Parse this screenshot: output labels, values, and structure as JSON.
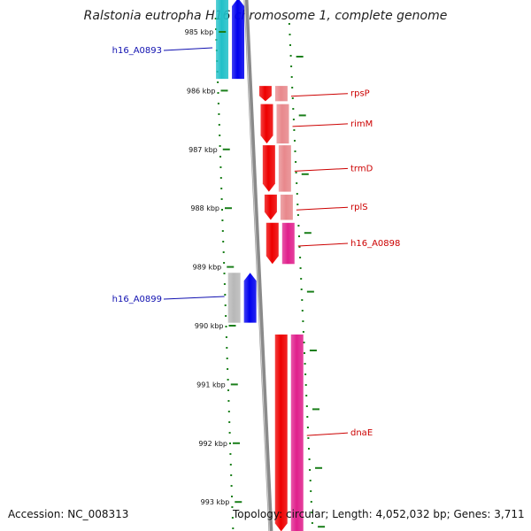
{
  "title": "Ralstonia eutropha H16 chromosome 1, complete genome",
  "footer": {
    "accession": "Accession: NC_008313",
    "topology": "Topology: circular; Length: 4,052,032 bp; Genes: 3,711"
  },
  "colors": {
    "backbone": "#8a8a8a",
    "tick": "#1a7f1a",
    "label_blue": "#1010b0",
    "label_red": "#cc0000",
    "gene_red": "#ee0000",
    "gene_pink": "#e8888c",
    "gene_magenta": "#e0208c",
    "gene_blue": "#0000ee",
    "gene_cyan": "#20c0c8",
    "gene_gray": "#b8b8b8"
  },
  "ticks": [
    {
      "label": "985 kbp",
      "kbp": 985
    },
    {
      "label": "986 kbp",
      "kbp": 986
    },
    {
      "label": "987 kbp",
      "kbp": 987
    },
    {
      "label": "988 kbp",
      "kbp": 988
    },
    {
      "label": "989 kbp",
      "kbp": 989
    },
    {
      "label": "990 kbp",
      "kbp": 990
    },
    {
      "label": "991 kbp",
      "kbp": 991
    },
    {
      "label": "992 kbp",
      "kbp": 992
    },
    {
      "label": "993 kbp",
      "kbp": 993
    }
  ],
  "genes": [
    {
      "name": "h16_A0893",
      "start": 984.2,
      "end": 985.8,
      "lane": "left",
      "color": "gene_blue",
      "side": "left",
      "shade": "gene_cyan",
      "labelled": true
    },
    {
      "name": "rpsP",
      "start": 985.92,
      "end": 986.18,
      "lane": "right",
      "color": "gene_red",
      "side": "right",
      "shade": "gene_pink",
      "labelled": true
    },
    {
      "name": "rimM",
      "start": 986.23,
      "end": 986.9,
      "lane": "right",
      "color": "gene_red",
      "side": "right",
      "shade": "gene_pink",
      "labelled": true
    },
    {
      "name": "trmD",
      "start": 986.93,
      "end": 987.72,
      "lane": "right",
      "color": "gene_red",
      "side": "right",
      "shade": "gene_pink",
      "labelled": true
    },
    {
      "name": "rplS",
      "start": 987.77,
      "end": 988.2,
      "lane": "right",
      "color": "gene_red",
      "side": "right",
      "shade": "gene_pink",
      "labelled": true
    },
    {
      "name": "h16_A0898",
      "start": 988.25,
      "end": 988.95,
      "lane": "right",
      "color": "gene_red",
      "side": "right",
      "shade": "gene_magenta",
      "labelled": true
    },
    {
      "name": "h16_A0899",
      "start": 989.1,
      "end": 989.95,
      "lane": "left",
      "color": "gene_blue",
      "side": "left",
      "shade": "gene_gray",
      "labelled": true
    },
    {
      "name": "dnaE",
      "start": 990.15,
      "end": 993.5,
      "lane": "right",
      "color": "gene_red",
      "side": "right",
      "shade": "gene_magenta",
      "labelled": true
    }
  ]
}
